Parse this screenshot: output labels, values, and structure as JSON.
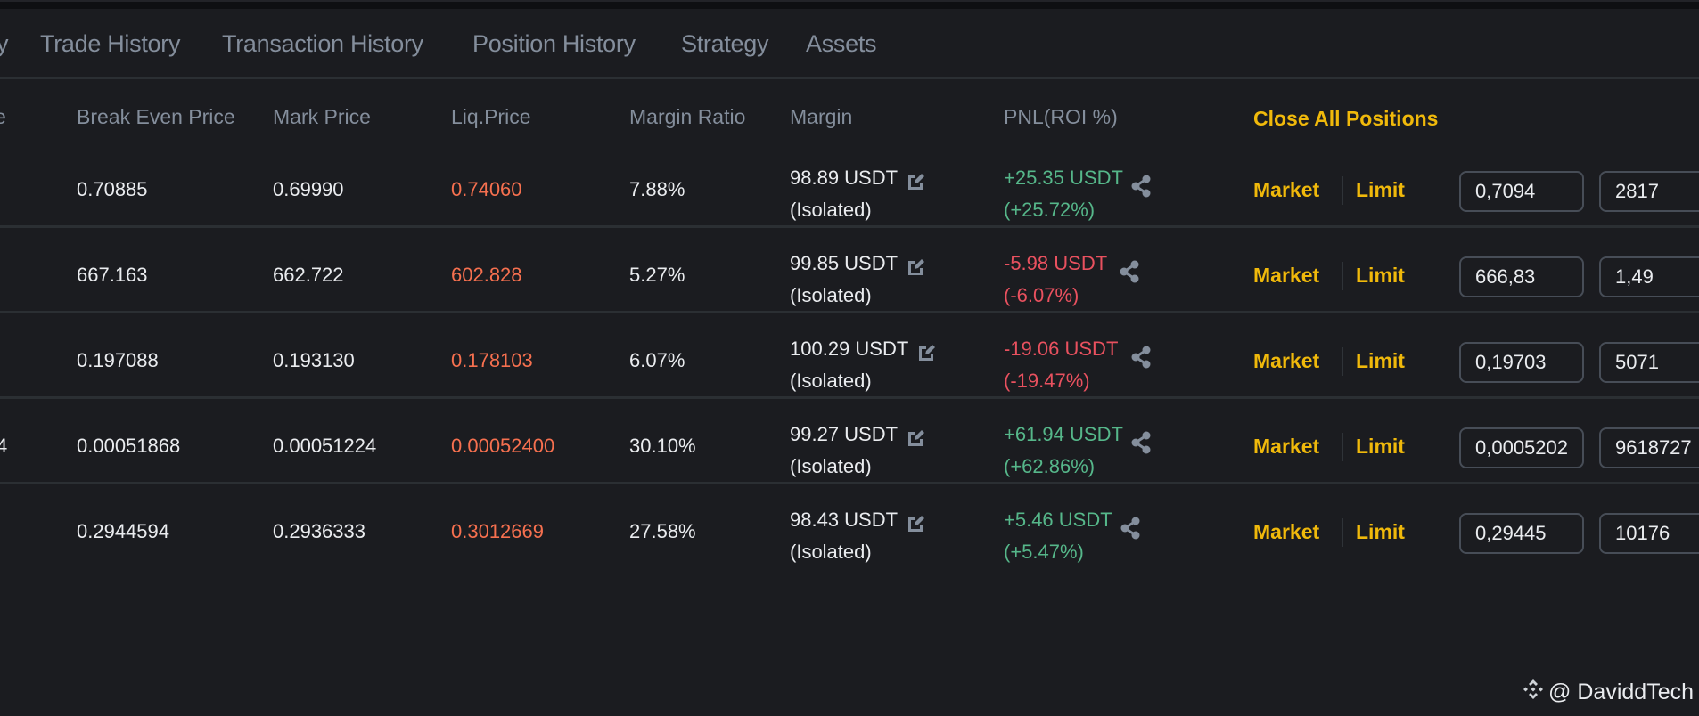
{
  "tabs": [
    {
      "label": "y"
    },
    {
      "label": "Trade History"
    },
    {
      "label": "Transaction History"
    },
    {
      "label": "Position History"
    },
    {
      "label": "Strategy"
    },
    {
      "label": "Assets"
    }
  ],
  "table": {
    "headers": {
      "partial_left": "e",
      "break_even_price": "Break Even Price",
      "mark_price": "Mark Price",
      "liq_price": "Liq.Price",
      "margin_ratio": "Margin Ratio",
      "margin": "Margin",
      "pnl": "PNL(ROI %)",
      "close_all": "Close All Positions"
    },
    "rows": [
      {
        "partial_left": "",
        "break_even": "0.70885",
        "mark": "0.69990",
        "liq": "0.74060",
        "margin_ratio": "7.88%",
        "margin": "98.89 USDT",
        "margin_mode": "(Isolated)",
        "pnl": "+25.35 USDT",
        "roi": "(+25.72%)",
        "pnl_sign": "pos",
        "market_label": "Market",
        "limit_label": "Limit",
        "price_input": "0,7094",
        "qty_input": "2817"
      },
      {
        "partial_left": "",
        "break_even": "667.163",
        "mark": "662.722",
        "liq": "602.828",
        "margin_ratio": "5.27%",
        "margin": "99.85 USDT",
        "margin_mode": "(Isolated)",
        "pnl": "-5.98 USDT",
        "roi": "(-6.07%)",
        "pnl_sign": "neg",
        "market_label": "Market",
        "limit_label": "Limit",
        "price_input": "666,83",
        "qty_input": "1,49"
      },
      {
        "partial_left": "",
        "break_even": "0.197088",
        "mark": "0.193130",
        "liq": "0.178103",
        "margin_ratio": "6.07%",
        "margin": "100.29 USDT",
        "margin_mode": "(Isolated)",
        "pnl": "-19.06 USDT",
        "roi": "(-19.47%)",
        "pnl_sign": "neg",
        "market_label": "Market",
        "limit_label": "Limit",
        "price_input": "0,19703",
        "qty_input": "5071"
      },
      {
        "partial_left": "4",
        "break_even": "0.00051868",
        "mark": "0.00051224",
        "liq": "0.00052400",
        "margin_ratio": "30.10%",
        "margin": "99.27 USDT",
        "margin_mode": "(Isolated)",
        "pnl": "+61.94 USDT",
        "roi": "(+62.86%)",
        "pnl_sign": "pos",
        "market_label": "Market",
        "limit_label": "Limit",
        "price_input": "0,0005202",
        "qty_input": "9618727"
      },
      {
        "partial_left": "",
        "break_even": "0.2944594",
        "mark": "0.2936333",
        "liq": "0.3012669",
        "margin_ratio": "27.58%",
        "margin": "98.43 USDT",
        "margin_mode": "(Isolated)",
        "pnl": "+5.46 USDT",
        "roi": "(+5.47%)",
        "pnl_sign": "pos",
        "market_label": "Market",
        "limit_label": "Limit",
        "price_input": "0,29445",
        "qty_input": "10176"
      }
    ]
  },
  "icons": {
    "edit": "edit-margin-icon",
    "share": "share-icon",
    "brand": "binance-logo-icon"
  },
  "watermark": {
    "text": "@ DaviddTech"
  },
  "colors": {
    "background": "#1b1c20",
    "accent": "#f0b90b",
    "liq": "#f6704f",
    "positive": "#56b78a",
    "negative": "#e9515f",
    "muted": "#848e9c"
  }
}
